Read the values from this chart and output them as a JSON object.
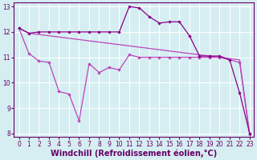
{
  "line1_x": [
    0,
    1,
    2,
    3,
    4,
    5,
    6,
    7,
    8,
    9,
    10,
    11,
    12,
    13,
    14,
    15,
    16,
    17,
    18,
    19,
    20,
    21,
    22,
    23
  ],
  "line1_y": [
    12.15,
    11.95,
    12.0,
    12.0,
    12.0,
    12.0,
    12.0,
    12.0,
    12.0,
    12.0,
    12.0,
    13.0,
    12.95,
    12.6,
    12.35,
    12.4,
    12.4,
    11.85,
    11.05,
    11.05,
    11.05,
    10.9,
    9.6,
    8.0
  ],
  "line2_x": [
    0,
    1,
    2,
    3,
    4,
    5,
    6,
    7,
    8,
    9,
    10,
    11,
    12,
    13,
    14,
    15,
    16,
    17,
    18,
    19,
    20,
    21,
    22,
    23
  ],
  "line2_y": [
    12.15,
    11.95,
    11.9,
    11.85,
    11.8,
    11.75,
    11.7,
    11.65,
    11.6,
    11.55,
    11.5,
    11.45,
    11.4,
    11.35,
    11.3,
    11.25,
    11.2,
    11.15,
    11.1,
    11.05,
    11.0,
    10.95,
    10.9,
    7.95
  ],
  "line3_x": [
    0,
    1,
    2,
    3,
    4,
    5,
    6,
    7,
    8,
    9,
    10,
    11,
    12,
    13,
    14,
    15,
    16,
    17,
    18,
    19,
    20,
    21,
    22,
    23
  ],
  "line3_y": [
    12.15,
    11.15,
    10.85,
    10.8,
    9.65,
    9.55,
    8.5,
    10.75,
    10.4,
    10.6,
    10.5,
    11.1,
    11.0,
    11.0,
    11.0,
    11.0,
    11.0,
    11.0,
    11.0,
    11.0,
    11.0,
    10.9,
    10.8,
    7.95
  ],
  "line_color1": "#880088",
  "line_color2": "#bb44bb",
  "line_color3": "#bb44bb",
  "bg_color": "#d6eef2",
  "grid_color": "#b8dce0",
  "xlabel": "Windchill (Refroidissement éolien,°C)",
  "xlim_min": -0.5,
  "xlim_max": 23.4,
  "ylim_min": 7.85,
  "ylim_max": 13.15,
  "xticks": [
    0,
    1,
    2,
    3,
    4,
    5,
    6,
    7,
    8,
    9,
    10,
    11,
    12,
    13,
    14,
    15,
    16,
    17,
    18,
    19,
    20,
    21,
    22,
    23
  ],
  "yticks": [
    8,
    9,
    10,
    11,
    12,
    13
  ],
  "tick_fontsize": 5.5,
  "xlabel_fontsize": 7.0
}
